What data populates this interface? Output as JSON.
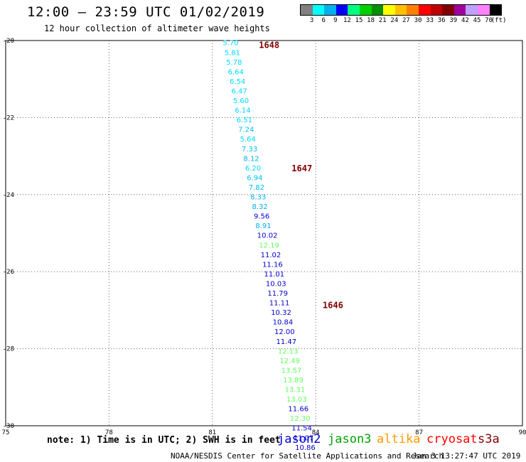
{
  "header": {
    "title": "12:00 — 23:59 UTC 01/02/2019",
    "subtitle": "12 hour collection of altimeter wave heights"
  },
  "colorbar": {
    "colors": [
      "#808080",
      "#00ffff",
      "#00b0f0",
      "#0000ff",
      "#00ff80",
      "#00d000",
      "#009000",
      "#ffff00",
      "#ffc000",
      "#ff8000",
      "#ff0000",
      "#c00000",
      "#800000",
      "#a000a0",
      "#c0a0ff",
      "#ff80ff",
      "#000000"
    ],
    "labels": [
      "3",
      "6",
      "9",
      "12",
      "15",
      "18",
      "21",
      "24",
      "27",
      "30",
      "33",
      "36",
      "39",
      "42",
      "45",
      "70"
    ],
    "unit": "(ft)"
  },
  "axes": {
    "x_ticks": [
      "75",
      "78",
      "81",
      "84",
      "87",
      "90"
    ],
    "y_ticks": [
      "-20",
      "-22",
      "-24",
      "-26",
      "-28",
      "-30"
    ]
  },
  "chart_data": {
    "type": "scatter",
    "xlim": [
      75,
      90
    ],
    "ylim": [
      -30,
      -20
    ],
    "grid": true,
    "pass_labels": [
      {
        "text": "1648",
        "lon": 82.35,
        "lat": -20.1
      },
      {
        "text": "1647",
        "lon": 83.3,
        "lat": -23.3
      },
      {
        "text": "1646",
        "lon": 84.2,
        "lat": -26.85
      }
    ],
    "points": [
      {
        "v": "5.70",
        "lon": 81.3,
        "lat": -20.05,
        "c": "#00d8ff"
      },
      {
        "v": "5.81",
        "lon": 81.35,
        "lat": -20.3,
        "c": "#00d8ff"
      },
      {
        "v": "5.78",
        "lon": 81.4,
        "lat": -20.55,
        "c": "#00d8ff"
      },
      {
        "v": "6.64",
        "lon": 81.45,
        "lat": -20.8,
        "c": "#00d8ff"
      },
      {
        "v": "6.54",
        "lon": 81.5,
        "lat": -21.05,
        "c": "#00d8ff"
      },
      {
        "v": "6.47",
        "lon": 81.55,
        "lat": -21.3,
        "c": "#00d8ff"
      },
      {
        "v": "5.60",
        "lon": 81.6,
        "lat": -21.55,
        "c": "#00d8ff"
      },
      {
        "v": "6.14",
        "lon": 81.65,
        "lat": -21.8,
        "c": "#00d8ff"
      },
      {
        "v": "6.51",
        "lon": 81.7,
        "lat": -22.05,
        "c": "#00d8ff"
      },
      {
        "v": "7.24",
        "lon": 81.75,
        "lat": -22.3,
        "c": "#00c0f0"
      },
      {
        "v": "5.64",
        "lon": 81.8,
        "lat": -22.55,
        "c": "#00d8ff"
      },
      {
        "v": "7.33",
        "lon": 81.85,
        "lat": -22.8,
        "c": "#00c0f0"
      },
      {
        "v": "8.12",
        "lon": 81.9,
        "lat": -23.05,
        "c": "#00b0f0"
      },
      {
        "v": "6.20",
        "lon": 81.95,
        "lat": -23.3,
        "c": "#00d8ff"
      },
      {
        "v": "6.94",
        "lon": 82.0,
        "lat": -23.55,
        "c": "#00c0f0"
      },
      {
        "v": "7.82",
        "lon": 82.05,
        "lat": -23.8,
        "c": "#00c0f0"
      },
      {
        "v": "8.33",
        "lon": 82.1,
        "lat": -24.05,
        "c": "#00b0f0"
      },
      {
        "v": "8.32",
        "lon": 82.15,
        "lat": -24.3,
        "c": "#00b0f0"
      },
      {
        "v": "9.56",
        "lon": 82.2,
        "lat": -24.55,
        "c": "#0000d0"
      },
      {
        "v": "8.91",
        "lon": 82.25,
        "lat": -24.8,
        "c": "#00b0f0"
      },
      {
        "v": "10.02",
        "lon": 82.3,
        "lat": -25.05,
        "c": "#0000d0"
      },
      {
        "v": "12.19",
        "lon": 82.35,
        "lat": -25.3,
        "c": "#60ff60"
      },
      {
        "v": "11.02",
        "lon": 82.4,
        "lat": -25.55,
        "c": "#0000d0"
      },
      {
        "v": "11.16",
        "lon": 82.45,
        "lat": -25.8,
        "c": "#0000d0"
      },
      {
        "v": "11.01",
        "lon": 82.5,
        "lat": -26.05,
        "c": "#0000d0"
      },
      {
        "v": "10.03",
        "lon": 82.55,
        "lat": -26.3,
        "c": "#0000d0"
      },
      {
        "v": "11.79",
        "lon": 82.6,
        "lat": -26.55,
        "c": "#0000d0"
      },
      {
        "v": "11.11",
        "lon": 82.65,
        "lat": -26.8,
        "c": "#0000d0"
      },
      {
        "v": "10.32",
        "lon": 82.7,
        "lat": -27.05,
        "c": "#0000d0"
      },
      {
        "v": "10.84",
        "lon": 82.75,
        "lat": -27.3,
        "c": "#0000d0"
      },
      {
        "v": "12.00",
        "lon": 82.8,
        "lat": -27.55,
        "c": "#0000d0"
      },
      {
        "v": "11.47",
        "lon": 82.85,
        "lat": -27.8,
        "c": "#0000d0"
      },
      {
        "v": "12.13",
        "lon": 82.9,
        "lat": -28.05,
        "c": "#60ff60"
      },
      {
        "v": "12.49",
        "lon": 82.95,
        "lat": -28.3,
        "c": "#60ff60"
      },
      {
        "v": "13.57",
        "lon": 83.0,
        "lat": -28.55,
        "c": "#60ff60"
      },
      {
        "v": "13.89",
        "lon": 83.05,
        "lat": -28.8,
        "c": "#60ff60"
      },
      {
        "v": "13.31",
        "lon": 83.1,
        "lat": -29.05,
        "c": "#60ff60"
      },
      {
        "v": "13.03",
        "lon": 83.15,
        "lat": -29.3,
        "c": "#60ff60"
      },
      {
        "v": "11.66",
        "lon": 83.2,
        "lat": -29.55,
        "c": "#0000d0"
      },
      {
        "v": "12.30",
        "lon": 83.25,
        "lat": -29.8,
        "c": "#60ff60"
      },
      {
        "v": "11.54",
        "lon": 83.3,
        "lat": -30.05,
        "c": "#0000d0"
      },
      {
        "v": "11.07",
        "lon": 83.35,
        "lat": -30.3,
        "c": "#0000d0"
      },
      {
        "v": "10.86",
        "lon": 83.4,
        "lat": -30.55,
        "c": "#0000d0"
      }
    ]
  },
  "footer": {
    "note": "note: 1) Time is in UTC; 2) SWH is in feet",
    "legend": [
      {
        "name": "jason2",
        "color": "#0000d0"
      },
      {
        "name": "jason3",
        "color": "#00a000"
      },
      {
        "name": "altika",
        "color": "#ff9900"
      },
      {
        "name": "cryosat",
        "color": "#ff0000"
      },
      {
        "name": "s3a",
        "color": "#800000"
      }
    ],
    "credit": "NOAA/NESDIS Center for Satellite Applications and Research",
    "timestamp": "Jan  3 13:27:47 UTC 2019"
  }
}
